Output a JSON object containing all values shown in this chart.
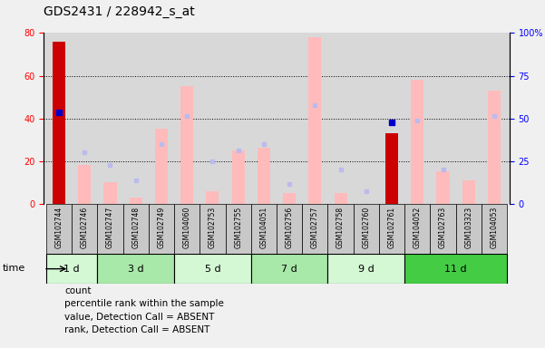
{
  "title": "GDS2431 / 228942_s_at",
  "samples": [
    "GSM102744",
    "GSM102746",
    "GSM102747",
    "GSM102748",
    "GSM102749",
    "GSM104060",
    "GSM102753",
    "GSM102755",
    "GSM104051",
    "GSM102756",
    "GSM102757",
    "GSM102758",
    "GSM102760",
    "GSM102761",
    "GSM104052",
    "GSM102763",
    "GSM103323",
    "GSM104053"
  ],
  "time_groups": [
    {
      "label": "1 d",
      "start": 0,
      "end": 1,
      "color": "#d4f7d4"
    },
    {
      "label": "3 d",
      "start": 2,
      "end": 4,
      "color": "#a8e8a8"
    },
    {
      "label": "5 d",
      "start": 5,
      "end": 7,
      "color": "#d4f7d4"
    },
    {
      "label": "7 d",
      "start": 8,
      "end": 10,
      "color": "#a8e8a8"
    },
    {
      "label": "9 d",
      "start": 11,
      "end": 13,
      "color": "#d4f7d4"
    },
    {
      "label": "11 d",
      "start": 14,
      "end": 17,
      "color": "#44cc44"
    }
  ],
  "count": [
    76,
    0,
    0,
    0,
    0,
    0,
    0,
    0,
    0,
    0,
    0,
    0,
    0,
    33,
    0,
    0,
    0,
    0
  ],
  "percentile_rank": [
    43,
    0,
    0,
    0,
    0,
    0,
    0,
    0,
    0,
    0,
    0,
    0,
    0,
    38,
    0,
    0,
    0,
    0
  ],
  "value_absent": [
    0,
    18,
    10,
    3,
    35,
    55,
    6,
    25,
    26,
    5,
    78,
    5,
    0,
    0,
    58,
    15,
    11,
    53
  ],
  "rank_absent": [
    0,
    24,
    18,
    11,
    28,
    41,
    20,
    25,
    28,
    9,
    46,
    16,
    6,
    0,
    39,
    16,
    0,
    41
  ],
  "ylim_left": [
    0,
    80
  ],
  "ylim_right": [
    0,
    100
  ],
  "left_ticks": [
    0,
    20,
    40,
    60,
    80
  ],
  "right_ticks": [
    0,
    25,
    50,
    75,
    100
  ],
  "right_tick_labels": [
    "0",
    "25",
    "50",
    "75",
    "100%"
  ],
  "grid_values": [
    20,
    40,
    60
  ],
  "color_count": "#cc0000",
  "color_percentile": "#0000cc",
  "color_value_absent": "#ffbbbb",
  "color_rank_absent": "#bbbbee",
  "bar_width": 0.5,
  "bg_plot": "#d8d8d8",
  "bg_label": "#c8c8c8",
  "bg_fig": "#f0f0f0",
  "legend_items": [
    {
      "color": "#cc0000",
      "label": "count"
    },
    {
      "color": "#0000cc",
      "label": "percentile rank within the sample"
    },
    {
      "color": "#ffbbbb",
      "label": "value, Detection Call = ABSENT"
    },
    {
      "color": "#bbbbee",
      "label": "rank, Detection Call = ABSENT"
    }
  ]
}
